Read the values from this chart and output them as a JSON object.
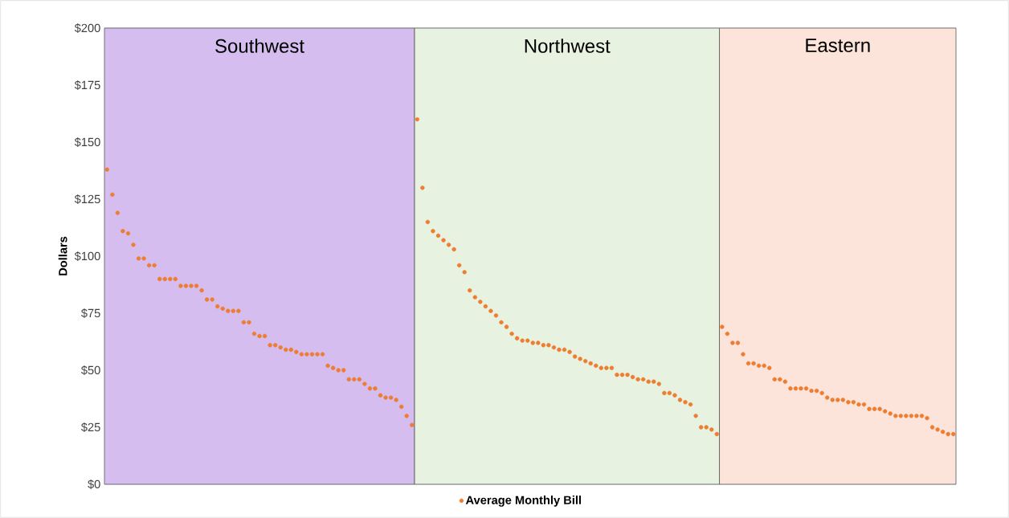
{
  "chart_data": {
    "type": "scatter",
    "ylabel": "Dollars",
    "categories": [
      null,
      null,
      null,
      null,
      null,
      null,
      null,
      null,
      null,
      null,
      null,
      null,
      null,
      null,
      null,
      null,
      null,
      null,
      null,
      null,
      null,
      null,
      null,
      null,
      null,
      null,
      null,
      null,
      null,
      null,
      null,
      null,
      null,
      null,
      null,
      null,
      null,
      null,
      null,
      null,
      null,
      null,
      null,
      null,
      null,
      null,
      null,
      null,
      null,
      null,
      null,
      null,
      null,
      null,
      null,
      null,
      null,
      null,
      null,
      null,
      null,
      null,
      null,
      null,
      null,
      null,
      null,
      null,
      null,
      null,
      null,
      null,
      null,
      null,
      null,
      null,
      null,
      null,
      null,
      null,
      null,
      null,
      null,
      null,
      null,
      null,
      null,
      null,
      null,
      null,
      null,
      null,
      null,
      null,
      null,
      null,
      null,
      null,
      null,
      null,
      null,
      null,
      null,
      null,
      null,
      null,
      null,
      null,
      null,
      null,
      null,
      null,
      null,
      null,
      null,
      null,
      null,
      null,
      null,
      null,
      null,
      null,
      null,
      null,
      null,
      null,
      null,
      null,
      null,
      null,
      null,
      null,
      null,
      null,
      null,
      null,
      null,
      null,
      null,
      null,
      null,
      null,
      null,
      null,
      null,
      null,
      null,
      null,
      null,
      null,
      null,
      null,
      null,
      null,
      null,
      null,
      null,
      null,
      null,
      null,
      null,
      null
    ],
    "series": [
      {
        "name": "Average Monthly Bill",
        "color": "#ed7d31",
        "values": [
          138,
          127,
          119,
          111,
          110,
          105,
          99,
          99,
          96,
          96,
          90,
          90,
          90,
          90,
          87,
          87,
          87,
          87,
          85,
          81,
          81,
          78,
          77,
          76,
          76,
          76,
          71,
          71,
          66,
          65,
          65,
          61,
          61,
          60,
          59,
          59,
          58,
          57,
          57,
          57,
          57,
          57,
          52,
          51,
          50,
          50,
          46,
          46,
          46,
          44,
          42,
          42,
          39,
          38,
          38,
          37,
          34,
          30,
          26,
          null,
          null,
          null,
          null,
          null,
          null,
          null,
          null,
          null,
          null,
          null,
          null,
          null,
          null,
          null,
          null,
          null,
          null,
          null,
          null,
          null,
          null,
          null,
          null,
          null,
          null,
          null,
          null,
          null,
          null,
          null,
          null,
          null,
          null,
          null,
          null,
          null,
          null,
          null,
          null,
          null,
          null,
          null,
          null,
          null,
          null,
          null,
          null,
          null,
          null,
          null,
          null,
          null,
          null,
          null,
          null,
          null,
          null,
          null,
          null,
          null,
          null,
          null,
          null,
          null,
          null,
          null,
          null,
          null,
          null,
          null,
          null,
          null,
          null,
          null,
          null,
          null,
          null,
          null,
          null,
          null,
          null,
          null,
          null,
          null,
          null,
          null,
          null,
          null,
          null,
          null,
          null,
          null,
          null,
          null,
          null,
          null,
          null,
          null,
          null,
          null,
          null,
          null
        ]
      },
      {
        "color": "#ed7d31",
        "values": [
          null,
          null,
          null,
          null,
          null,
          null,
          null,
          null,
          null,
          null,
          null,
          null,
          null,
          null,
          null,
          null,
          null,
          null,
          null,
          null,
          null,
          null,
          null,
          null,
          null,
          null,
          null,
          null,
          null,
          null,
          null,
          null,
          null,
          null,
          null,
          null,
          null,
          null,
          null,
          null,
          null,
          null,
          null,
          null,
          null,
          null,
          null,
          null,
          null,
          null,
          null,
          null,
          null,
          null,
          null,
          null,
          null,
          null,
          null,
          160,
          130,
          115,
          111,
          109,
          107,
          105,
          103,
          96,
          93,
          85,
          82,
          80,
          78,
          76,
          74,
          71,
          69,
          66,
          64,
          63,
          63,
          62,
          62,
          61,
          61,
          60,
          59,
          59,
          58,
          56,
          55,
          54,
          53,
          52,
          51,
          51,
          51,
          48,
          48,
          48,
          47,
          46,
          46,
          45,
          45,
          44,
          40,
          40,
          39,
          37,
          36,
          35,
          30,
          25,
          25,
          24,
          22,
          null,
          null,
          null,
          null,
          null,
          null,
          null,
          null,
          null,
          null,
          null,
          null,
          null,
          null,
          null,
          null,
          null,
          null,
          null,
          null,
          null,
          null,
          null,
          null,
          null,
          null,
          null,
          null,
          null,
          null,
          null,
          null,
          null,
          null,
          null,
          null,
          null,
          null,
          null,
          null,
          null,
          null,
          null,
          null,
          null
        ]
      },
      {
        "color": "#ed7d31",
        "values": [
          null,
          null,
          null,
          null,
          null,
          null,
          null,
          null,
          null,
          null,
          null,
          null,
          null,
          null,
          null,
          null,
          null,
          null,
          null,
          null,
          null,
          null,
          null,
          null,
          null,
          null,
          null,
          null,
          null,
          null,
          null,
          null,
          null,
          null,
          null,
          null,
          null,
          null,
          null,
          null,
          null,
          null,
          null,
          null,
          null,
          null,
          null,
          null,
          null,
          null,
          null,
          null,
          null,
          null,
          null,
          null,
          null,
          null,
          null,
          null,
          null,
          null,
          null,
          null,
          null,
          null,
          null,
          null,
          null,
          null,
          null,
          null,
          null,
          null,
          null,
          null,
          null,
          null,
          null,
          null,
          null,
          null,
          null,
          null,
          null,
          null,
          null,
          null,
          null,
          null,
          null,
          null,
          null,
          null,
          null,
          null,
          null,
          null,
          null,
          null,
          null,
          null,
          null,
          null,
          null,
          null,
          null,
          null,
          null,
          null,
          null,
          null,
          null,
          null,
          null,
          null,
          null,
          69,
          66,
          62,
          62,
          57,
          53,
          53,
          52,
          52,
          51,
          46,
          46,
          45,
          42,
          42,
          42,
          42,
          41,
          41,
          40,
          38,
          37,
          37,
          37,
          36,
          36,
          35,
          35,
          33,
          33,
          33,
          32,
          31,
          30,
          30,
          30,
          30,
          30,
          30,
          29,
          25,
          24,
          23,
          22,
          22
        ]
      }
    ],
    "annotations": [
      "Southwest",
      "Northwest",
      "Eastern"
    ],
    "ylim": [
      0,
      200
    ],
    "yticks": [
      {
        "value": 0,
        "label": "$0"
      },
      {
        "value": 25,
        "label": "$25"
      },
      {
        "value": 50,
        "label": "$50"
      },
      {
        "value": 75,
        "label": "$75"
      },
      {
        "value": 100,
        "label": "$100"
      },
      {
        "value": 125,
        "label": "$125"
      },
      {
        "value": 150,
        "label": "$150"
      },
      {
        "value": 175,
        "label": "$175"
      },
      {
        "value": 200,
        "label": "$200"
      }
    ],
    "tick_labels": "y",
    "grid": "y",
    "legend": "bottom",
    "marker": "circle"
  }
}
